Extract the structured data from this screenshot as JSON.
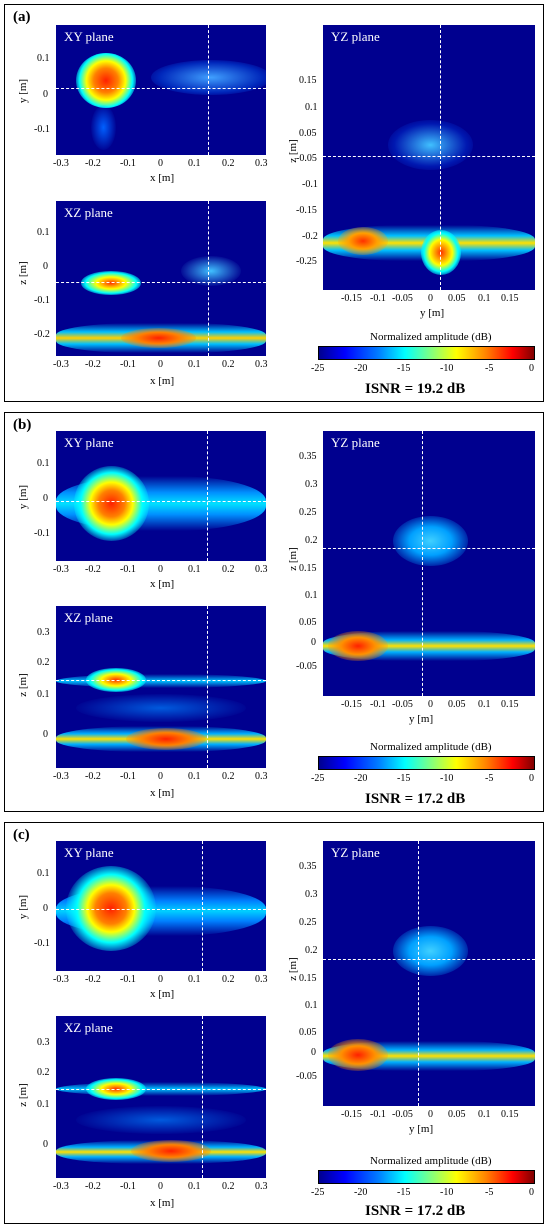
{
  "panels": [
    {
      "label": "(a)",
      "xy": {
        "title": "XY plane",
        "xlabel": "x [m]",
        "ylabel": "y [m]",
        "xticks": [
          "-0.3",
          "-0.2",
          "-0.1",
          "0",
          "0.1",
          "0.2",
          "0.3"
        ],
        "yticks": [
          "0.1",
          "0",
          "-0.1"
        ]
      },
      "xz": {
        "title": "XZ plane",
        "xlabel": "x [m]",
        "ylabel": "z [m]",
        "xticks": [
          "-0.3",
          "-0.2",
          "-0.1",
          "0",
          "0.1",
          "0.2",
          "0.3"
        ],
        "yticks": [
          "0.1",
          "0",
          "-0.1",
          "-0.2"
        ]
      },
      "yz": {
        "title": "YZ plane",
        "xlabel": "y [m]",
        "ylabel": "z [m]",
        "xticks": [
          "-0.15",
          "-0.1",
          "-0.05",
          "0",
          "0.05",
          "0.1",
          "0.15"
        ],
        "yticks": [
          "0.15",
          "0.1",
          "0.05",
          "0",
          "-0.05",
          "-0.1",
          "-0.15",
          "-0.2",
          "-0.25"
        ]
      },
      "colorbar": {
        "title": "Normalized amplitude (dB)",
        "ticks": [
          "-25",
          "-20",
          "-15",
          "-10",
          "-5",
          "0"
        ]
      },
      "isnr": "ISNR = 19.2 dB"
    },
    {
      "label": "(b)",
      "xy": {
        "title": "XY plane",
        "xlabel": "x [m]",
        "ylabel": "y [m]",
        "xticks": [
          "-0.3",
          "-0.2",
          "-0.1",
          "0",
          "0.1",
          "0.2",
          "0.3"
        ],
        "yticks": [
          "0.1",
          "0",
          "-0.1"
        ]
      },
      "xz": {
        "title": "XZ plane",
        "xlabel": "x [m]",
        "ylabel": "z [m]",
        "xticks": [
          "-0.3",
          "-0.2",
          "-0.1",
          "0",
          "0.1",
          "0.2",
          "0.3"
        ],
        "yticks": [
          "0.3",
          "0.2",
          "0.1",
          "0"
        ]
      },
      "yz": {
        "title": "YZ plane",
        "xlabel": "y [m]",
        "ylabel": "z [m]",
        "xticks": [
          "-0.15",
          "-0.1",
          "-0.05",
          "0",
          "0.05",
          "0.1",
          "0.15"
        ],
        "yticks": [
          "0.35",
          "0.3",
          "0.25",
          "0.2",
          "0.15",
          "0.1",
          "0.05",
          "0",
          "-0.05"
        ]
      },
      "colorbar": {
        "title": "Normalized amplitude (dB)",
        "ticks": [
          "-25",
          "-20",
          "-15",
          "-10",
          "-5",
          "0"
        ]
      },
      "isnr": "ISNR = 17.2 dB"
    },
    {
      "label": "(c)",
      "xy": {
        "title": "XY plane",
        "xlabel": "x [m]",
        "ylabel": "y [m]",
        "xticks": [
          "-0.3",
          "-0.2",
          "-0.1",
          "0",
          "0.1",
          "0.2",
          "0.3"
        ],
        "yticks": [
          "0.1",
          "0",
          "-0.1"
        ]
      },
      "xz": {
        "title": "XZ plane",
        "xlabel": "x [m]",
        "ylabel": "z [m]",
        "xticks": [
          "-0.3",
          "-0.2",
          "-0.1",
          "0",
          "0.1",
          "0.2",
          "0.3"
        ],
        "yticks": [
          "0.3",
          "0.2",
          "0.1",
          "0"
        ]
      },
      "yz": {
        "title": "YZ plane",
        "xlabel": "y [m]",
        "ylabel": "z [m]",
        "xticks": [
          "-0.15",
          "-0.1",
          "-0.05",
          "0",
          "0.05",
          "0.1",
          "0.15"
        ],
        "yticks": [
          "0.35",
          "0.3",
          "0.25",
          "0.2",
          "0.15",
          "0.1",
          "0.05",
          "0",
          "-0.05"
        ]
      },
      "colorbar": {
        "title": "Normalized amplitude (dB)",
        "ticks": [
          "-25",
          "-20",
          "-15",
          "-10",
          "-5",
          "0"
        ]
      },
      "isnr": "ISNR = 17.2 dB"
    }
  ],
  "colors": {
    "background": "#00008f",
    "crosshair": "#ffffff"
  }
}
